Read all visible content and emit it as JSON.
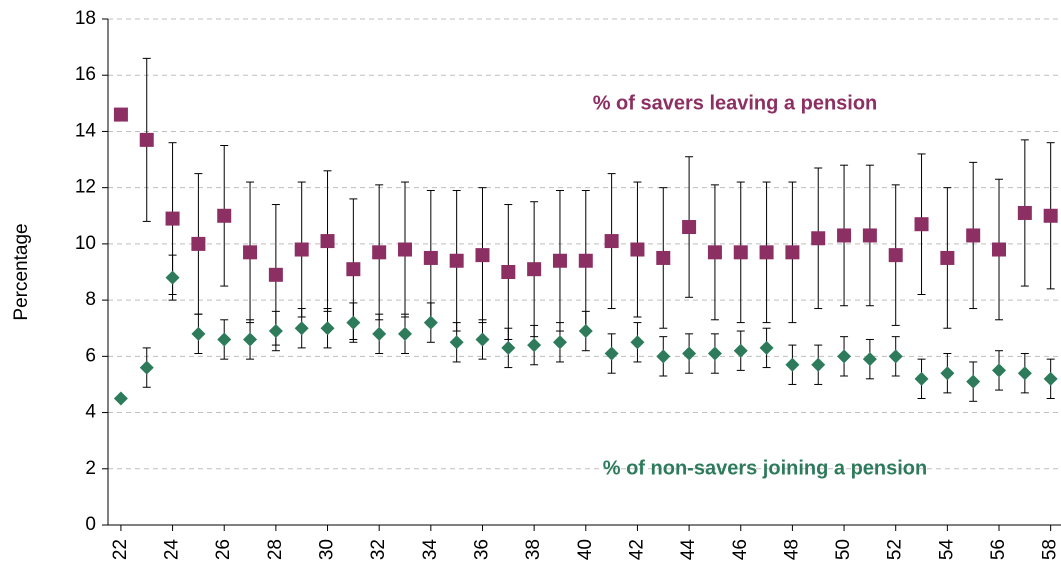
{
  "chart_data": {
    "type": "errorbar",
    "y_label": "Percentage",
    "x": [
      22,
      23,
      24,
      25,
      26,
      27,
      28,
      29,
      30,
      31,
      32,
      33,
      34,
      35,
      36,
      37,
      38,
      39,
      40,
      41,
      42,
      43,
      44,
      45,
      46,
      47,
      48,
      49,
      50,
      51,
      52,
      53,
      54,
      55,
      56,
      57,
      58
    ],
    "series": [
      {
        "name": "% of savers leaving a pension",
        "color": "#8c2f63",
        "marker": "square",
        "values": [
          14.6,
          13.7,
          10.9,
          10.0,
          11.0,
          9.7,
          8.9,
          9.8,
          10.1,
          9.1,
          9.7,
          9.8,
          9.5,
          9.4,
          9.6,
          9.0,
          9.1,
          9.4,
          9.4,
          10.1,
          9.8,
          9.5,
          10.6,
          9.7,
          9.7,
          9.7,
          9.7,
          10.2,
          10.3,
          10.3,
          9.6,
          10.7,
          9.5,
          10.3,
          9.8,
          11.1,
          11.0
        ],
        "errors": [
          0,
          2.9,
          2.7,
          2.5,
          2.5,
          2.5,
          2.5,
          2.4,
          2.5,
          2.5,
          2.4,
          2.4,
          2.4,
          2.5,
          2.4,
          2.4,
          2.4,
          2.5,
          2.5,
          2.4,
          2.4,
          2.5,
          2.5,
          2.4,
          2.5,
          2.5,
          2.5,
          2.5,
          2.5,
          2.5,
          2.5,
          2.5,
          2.5,
          2.6,
          2.5,
          2.6,
          2.6
        ]
      },
      {
        "name": "% of non-savers joining a pension",
        "color": "#2e7b5c",
        "marker": "diamond",
        "values": [
          4.5,
          5.6,
          8.8,
          6.8,
          6.6,
          6.6,
          6.9,
          7.0,
          7.0,
          7.2,
          6.8,
          6.8,
          7.2,
          6.5,
          6.6,
          6.3,
          6.4,
          6.5,
          6.9,
          6.1,
          6.5,
          6.0,
          6.1,
          6.1,
          6.2,
          6.3,
          5.7,
          5.7,
          6.0,
          5.9,
          6.0,
          5.2,
          5.4,
          5.1,
          5.5,
          5.4,
          5.2
        ],
        "errors": [
          0,
          0.7,
          0.8,
          0.7,
          0.7,
          0.7,
          0.7,
          0.7,
          0.7,
          0.7,
          0.7,
          0.7,
          0.7,
          0.7,
          0.7,
          0.7,
          0.7,
          0.7,
          0.7,
          0.7,
          0.7,
          0.7,
          0.7,
          0.7,
          0.7,
          0.7,
          0.7,
          0.7,
          0.7,
          0.7,
          0.7,
          0.7,
          0.7,
          0.7,
          0.7,
          0.7,
          0.7
        ]
      }
    ],
    "xlim": [
      21.5,
      58.4
    ],
    "xticks": [
      22,
      24,
      26,
      28,
      30,
      32,
      34,
      36,
      38,
      40,
      42,
      44,
      46,
      48,
      50,
      52,
      54,
      56,
      58
    ],
    "ylim": [
      0,
      18
    ],
    "yticks": [
      0,
      2,
      4,
      6,
      8,
      10,
      12,
      14,
      16,
      18
    ],
    "grid": true
  }
}
